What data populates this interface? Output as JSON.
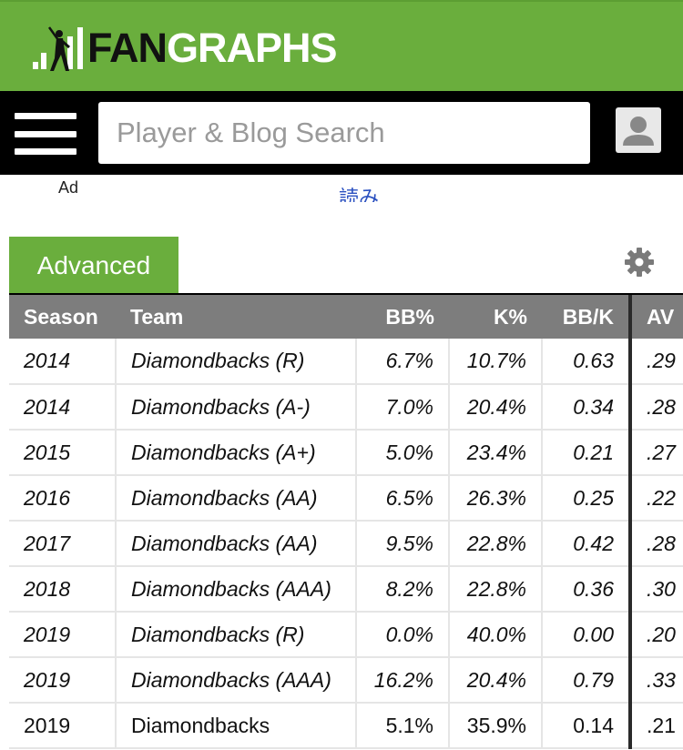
{
  "header": {
    "logo_part1": "FAN",
    "logo_part2": "GRAPHS",
    "brand_color": "#6aae3d"
  },
  "search": {
    "placeholder": "Player & Blog Search"
  },
  "icons": {
    "menu": "hamburger-menu-icon",
    "user": "user-icon",
    "settings": "gear-icon"
  },
  "ad": {
    "label": "Ad",
    "link_text": "読み"
  },
  "tabs": {
    "active_label": "Advanced"
  },
  "table": {
    "headers": [
      "Season",
      "Team",
      "BB%",
      "K%",
      "BB/K",
      "AV"
    ],
    "rows": [
      {
        "season": "2014",
        "team": "Diamondbacks (R)",
        "bb": "6.7%",
        "k": "10.7%",
        "bbk": "0.63",
        "avg": ".29",
        "italic": true
      },
      {
        "season": "2014",
        "team": "Diamondbacks (A-)",
        "bb": "7.0%",
        "k": "20.4%",
        "bbk": "0.34",
        "avg": ".28",
        "italic": true
      },
      {
        "season": "2015",
        "team": "Diamondbacks (A+)",
        "bb": "5.0%",
        "k": "23.4%",
        "bbk": "0.21",
        "avg": ".27",
        "italic": true
      },
      {
        "season": "2016",
        "team": "Diamondbacks (AA)",
        "bb": "6.5%",
        "k": "26.3%",
        "bbk": "0.25",
        "avg": ".22",
        "italic": true
      },
      {
        "season": "2017",
        "team": "Diamondbacks (AA)",
        "bb": "9.5%",
        "k": "22.8%",
        "bbk": "0.42",
        "avg": ".28",
        "italic": true
      },
      {
        "season": "2018",
        "team": "Diamondbacks (AAA)",
        "bb": "8.2%",
        "k": "22.8%",
        "bbk": "0.36",
        "avg": ".30",
        "italic": true
      },
      {
        "season": "2019",
        "team": "Diamondbacks (R)",
        "bb": "0.0%",
        "k": "40.0%",
        "bbk": "0.00",
        "avg": ".20",
        "italic": true
      },
      {
        "season": "2019",
        "team": "Diamondbacks (AAA)",
        "bb": "16.2%",
        "k": "20.4%",
        "bbk": "0.79",
        "avg": ".33",
        "italic": true
      },
      {
        "season": "2019",
        "team": "Diamondbacks",
        "bb": "5.1%",
        "k": "35.9%",
        "bbk": "0.14",
        "avg": ".21",
        "italic": false
      }
    ]
  }
}
